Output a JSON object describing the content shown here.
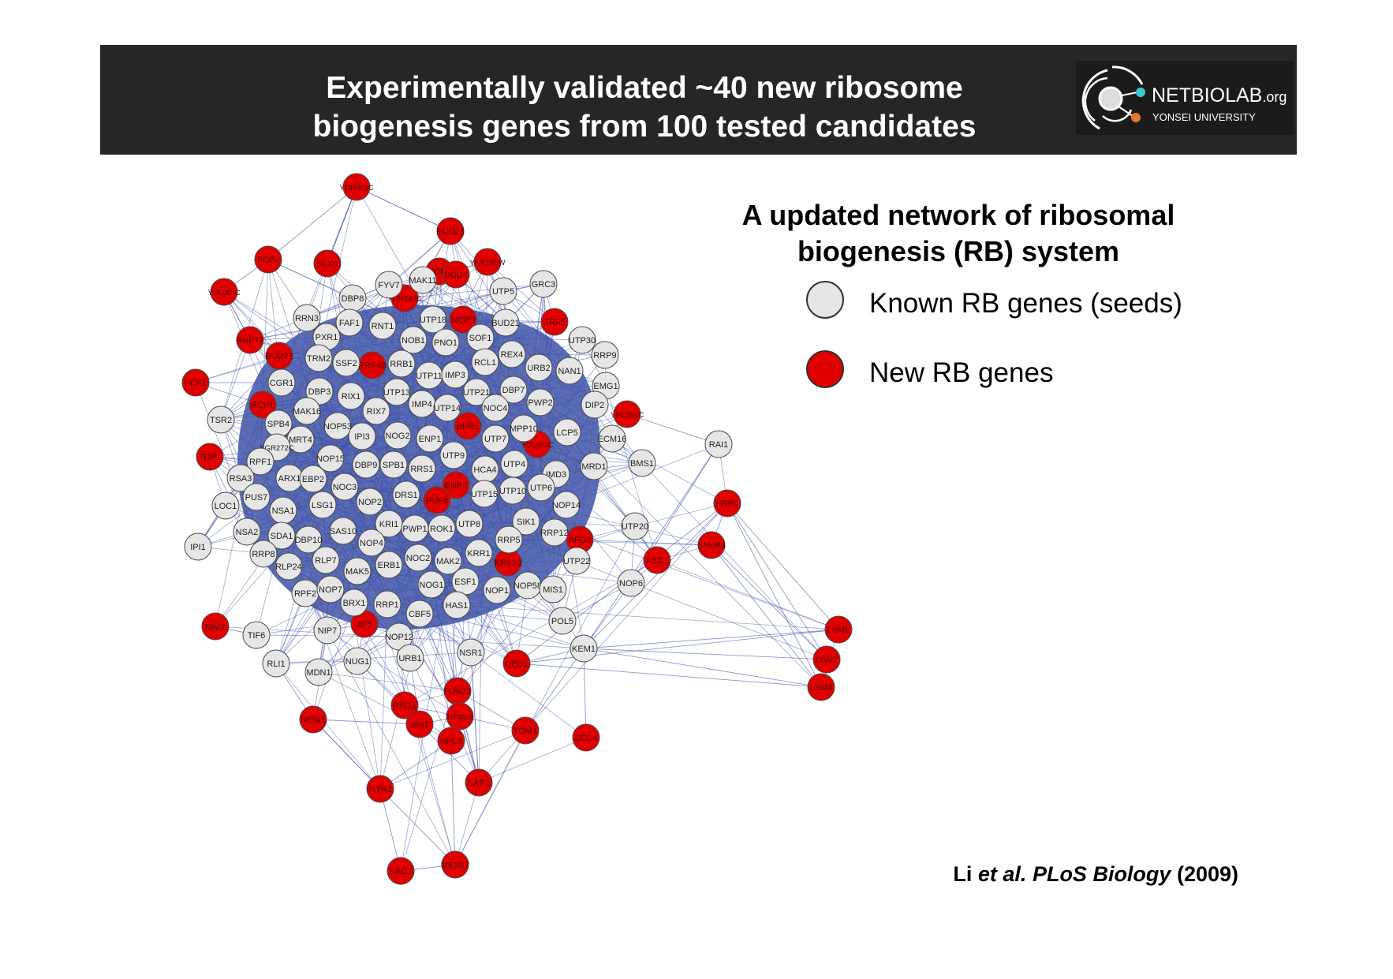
{
  "header": {
    "title_line1": "Experimentally validated ~40 new ribosome",
    "title_line2": "biogenesis genes from 100 tested candidates",
    "logo_text": "NETBIOLAB",
    "logo_suffix": ".org",
    "logo_sub": "YONSEI UNIVERSITY"
  },
  "legend": {
    "title_line1": "A updated network of ribosomal",
    "title_line2": "biogenesis (RB) system",
    "known_label": "Known RB genes (seeds)",
    "new_label": "New RB genes"
  },
  "citation": {
    "author": "Li",
    "etal": "et al.",
    "journal": "PLoS Biology",
    "year": "(2009)"
  },
  "colors": {
    "known": "#e6e6e6",
    "new": "#e00000",
    "edge": "#3f53a8",
    "header_bg": "#262626"
  },
  "network": {
    "nodes": [
      {
        "id": "YOR006C",
        "type": "new"
      },
      {
        "id": "BUD23",
        "type": "new"
      },
      {
        "id": "FCF2",
        "type": "new"
      },
      {
        "id": "SLX9",
        "type": "new"
      },
      {
        "id": "NOP8",
        "type": "new"
      },
      {
        "id": "YOR287C",
        "type": "new"
      },
      {
        "id": "YNR185W",
        "type": "new"
      },
      {
        "id": "SGD1",
        "type": "new"
      },
      {
        "id": "NOP9",
        "type": "new"
      },
      {
        "id": "TRF5",
        "type": "new"
      },
      {
        "id": "YDL063C",
        "type": "new"
      },
      {
        "id": "RRP17",
        "type": "new"
      },
      {
        "id": "BUD22",
        "type": "new"
      },
      {
        "id": "RRP40",
        "type": "new"
      },
      {
        "id": "FCF1",
        "type": "new"
      },
      {
        "id": "BCP1",
        "type": "new"
      },
      {
        "id": "YML091C",
        "type": "new"
      },
      {
        "id": "BFR2",
        "type": "new"
      },
      {
        "id": "YDL022C",
        "type": "new"
      },
      {
        "id": "TOP1",
        "type": "new"
      },
      {
        "id": "ENP2",
        "type": "new"
      },
      {
        "id": "PUF6",
        "type": "new"
      },
      {
        "id": "PRP4",
        "type": "new"
      },
      {
        "id": "AFG2",
        "type": "new"
      },
      {
        "id": "SNU66",
        "type": "new"
      },
      {
        "id": "ASC1",
        "type": "new"
      },
      {
        "id": "KRE33",
        "type": "new"
      },
      {
        "id": "MNI2",
        "type": "new"
      },
      {
        "id": "JIP5",
        "type": "new"
      },
      {
        "id": "LSM6",
        "type": "new"
      },
      {
        "id": "LSM7",
        "type": "new"
      },
      {
        "id": "DED1",
        "type": "new"
      },
      {
        "id": "LSM4",
        "type": "new"
      },
      {
        "id": "FUN12",
        "type": "new"
      },
      {
        "id": "RPG1",
        "type": "new"
      },
      {
        "id": "NEW1",
        "type": "new"
      },
      {
        "id": "SIS1",
        "type": "new"
      },
      {
        "id": "TIF4631",
        "type": "new"
      },
      {
        "id": "TOM1",
        "type": "new"
      },
      {
        "id": "SCC4",
        "type": "new"
      },
      {
        "id": "NPL3",
        "type": "new"
      },
      {
        "id": "MTR2",
        "type": "new"
      },
      {
        "id": "EAP1",
        "type": "new"
      },
      {
        "id": "SAC3",
        "type": "new"
      },
      {
        "id": "MEX67",
        "type": "new"
      },
      {
        "id": "DBP8",
        "type": "known"
      },
      {
        "id": "FYV7",
        "type": "known"
      },
      {
        "id": "MAK11",
        "type": "known"
      },
      {
        "id": "UTP5",
        "type": "known"
      },
      {
        "id": "GRC3",
        "type": "known"
      },
      {
        "id": "RRN3",
        "type": "known"
      },
      {
        "id": "FAF1",
        "type": "known"
      },
      {
        "id": "RNT1",
        "type": "known"
      },
      {
        "id": "UTP18",
        "type": "known"
      },
      {
        "id": "BUD21",
        "type": "known"
      },
      {
        "id": "PXR1",
        "type": "known"
      },
      {
        "id": "NOB1",
        "type": "known"
      },
      {
        "id": "PNO1",
        "type": "known"
      },
      {
        "id": "SOF1",
        "type": "known"
      },
      {
        "id": "UTP30",
        "type": "known"
      },
      {
        "id": "TRM2",
        "type": "known"
      },
      {
        "id": "SSF2",
        "type": "known"
      },
      {
        "id": "RRB1",
        "type": "known"
      },
      {
        "id": "RCL1",
        "type": "known"
      },
      {
        "id": "REX4",
        "type": "known"
      },
      {
        "id": "RRP9",
        "type": "known"
      },
      {
        "id": "URB2",
        "type": "known"
      },
      {
        "id": "NAN1",
        "type": "known"
      },
      {
        "id": "UTP11",
        "type": "known"
      },
      {
        "id": "IMP3",
        "type": "known"
      },
      {
        "id": "CGR1",
        "type": "known"
      },
      {
        "id": "DBP3",
        "type": "known"
      },
      {
        "id": "RIX1",
        "type": "known"
      },
      {
        "id": "UTP13",
        "type": "known"
      },
      {
        "id": "UTP21",
        "type": "known"
      },
      {
        "id": "DBP7",
        "type": "known"
      },
      {
        "id": "EMG1",
        "type": "known"
      },
      {
        "id": "IMP4",
        "type": "known"
      },
      {
        "id": "UTP14",
        "type": "known"
      },
      {
        "id": "NOC4",
        "type": "known"
      },
      {
        "id": "PWP2",
        "type": "known"
      },
      {
        "id": "DIP2",
        "type": "known"
      },
      {
        "id": "TSR2",
        "type": "known"
      },
      {
        "id": "MAK16",
        "type": "known"
      },
      {
        "id": "RIX7",
        "type": "known"
      },
      {
        "id": "SPB4",
        "type": "known"
      },
      {
        "id": "NOP53",
        "type": "known"
      },
      {
        "id": "MPP10",
        "type": "known"
      },
      {
        "id": "MRT4",
        "type": "known"
      },
      {
        "id": "IPI3",
        "type": "known"
      },
      {
        "id": "NOG2",
        "type": "known"
      },
      {
        "id": "ENP1",
        "type": "known"
      },
      {
        "id": "UTP7",
        "type": "known"
      },
      {
        "id": "LCP5",
        "type": "known"
      },
      {
        "id": "ECM16",
        "type": "known"
      },
      {
        "id": "YGR272C",
        "type": "known"
      },
      {
        "id": "RAI1",
        "type": "known"
      },
      {
        "id": "RPF1",
        "type": "known"
      },
      {
        "id": "NOP15",
        "type": "known"
      },
      {
        "id": "UTP9",
        "type": "known"
      },
      {
        "id": "DBP9",
        "type": "known"
      },
      {
        "id": "SPB1",
        "type": "known"
      },
      {
        "id": "RRS1",
        "type": "known"
      },
      {
        "id": "UTP4",
        "type": "known"
      },
      {
        "id": "MRD1",
        "type": "known"
      },
      {
        "id": "BMS1",
        "type": "known"
      },
      {
        "id": "RSA3",
        "type": "known"
      },
      {
        "id": "ARX1",
        "type": "known"
      },
      {
        "id": "EBP2",
        "type": "known"
      },
      {
        "id": "HCA4",
        "type": "known"
      },
      {
        "id": "IMD3",
        "type": "known"
      },
      {
        "id": "NOC3",
        "type": "known"
      },
      {
        "id": "UTP15",
        "type": "known"
      },
      {
        "id": "UTP10",
        "type": "known"
      },
      {
        "id": "UTP6",
        "type": "known"
      },
      {
        "id": "PUS7",
        "type": "known"
      },
      {
        "id": "DRS1",
        "type": "known"
      },
      {
        "id": "NOP2",
        "type": "known"
      },
      {
        "id": "LOC1",
        "type": "known"
      },
      {
        "id": "NSA1",
        "type": "known"
      },
      {
        "id": "LSG1",
        "type": "known"
      },
      {
        "id": "NOP14",
        "type": "known"
      },
      {
        "id": "KRI1",
        "type": "known"
      },
      {
        "id": "UTP8",
        "type": "known"
      },
      {
        "id": "SIK1",
        "type": "known"
      },
      {
        "id": "UTP20",
        "type": "known"
      },
      {
        "id": "NSA2",
        "type": "known"
      },
      {
        "id": "SDA1",
        "type": "known"
      },
      {
        "id": "SAS10",
        "type": "known"
      },
      {
        "id": "PWP1",
        "type": "known"
      },
      {
        "id": "ROK1",
        "type": "known"
      },
      {
        "id": "RRP12",
        "type": "known"
      },
      {
        "id": "IPI1",
        "type": "known"
      },
      {
        "id": "DBP10",
        "type": "known"
      },
      {
        "id": "NOP4",
        "type": "known"
      },
      {
        "id": "RRP5",
        "type": "known"
      },
      {
        "id": "RRP8",
        "type": "known"
      },
      {
        "id": "RLP24",
        "type": "known"
      },
      {
        "id": "RLP7",
        "type": "known"
      },
      {
        "id": "KRR1",
        "type": "known"
      },
      {
        "id": "UTP22",
        "type": "known"
      },
      {
        "id": "ERB1",
        "type": "known"
      },
      {
        "id": "NOC2",
        "type": "known"
      },
      {
        "id": "MAK2",
        "type": "known"
      },
      {
        "id": "MAK5",
        "type": "known"
      },
      {
        "id": "ESF1",
        "type": "known"
      },
      {
        "id": "NOP6",
        "type": "known"
      },
      {
        "id": "RPF2",
        "type": "known"
      },
      {
        "id": "NOP7",
        "type": "known"
      },
      {
        "id": "NOG1",
        "type": "known"
      },
      {
        "id": "NOP1",
        "type": "known"
      },
      {
        "id": "NOP58",
        "type": "known"
      },
      {
        "id": "MIS1",
        "type": "known"
      },
      {
        "id": "BRX1",
        "type": "known"
      },
      {
        "id": "RRP1",
        "type": "known"
      },
      {
        "id": "HAS1",
        "type": "known"
      },
      {
        "id": "CBF5",
        "type": "known"
      },
      {
        "id": "POL5",
        "type": "known"
      },
      {
        "id": "TIF6",
        "type": "known"
      },
      {
        "id": "NIP7",
        "type": "known"
      },
      {
        "id": "NOP12",
        "type": "known"
      },
      {
        "id": "KEM1",
        "type": "known"
      },
      {
        "id": "RLI1",
        "type": "known"
      },
      {
        "id": "MDN1",
        "type": "known"
      },
      {
        "id": "NUG1",
        "type": "known"
      },
      {
        "id": "URB1",
        "type": "known"
      },
      {
        "id": "NSR1",
        "type": "known"
      }
    ]
  }
}
